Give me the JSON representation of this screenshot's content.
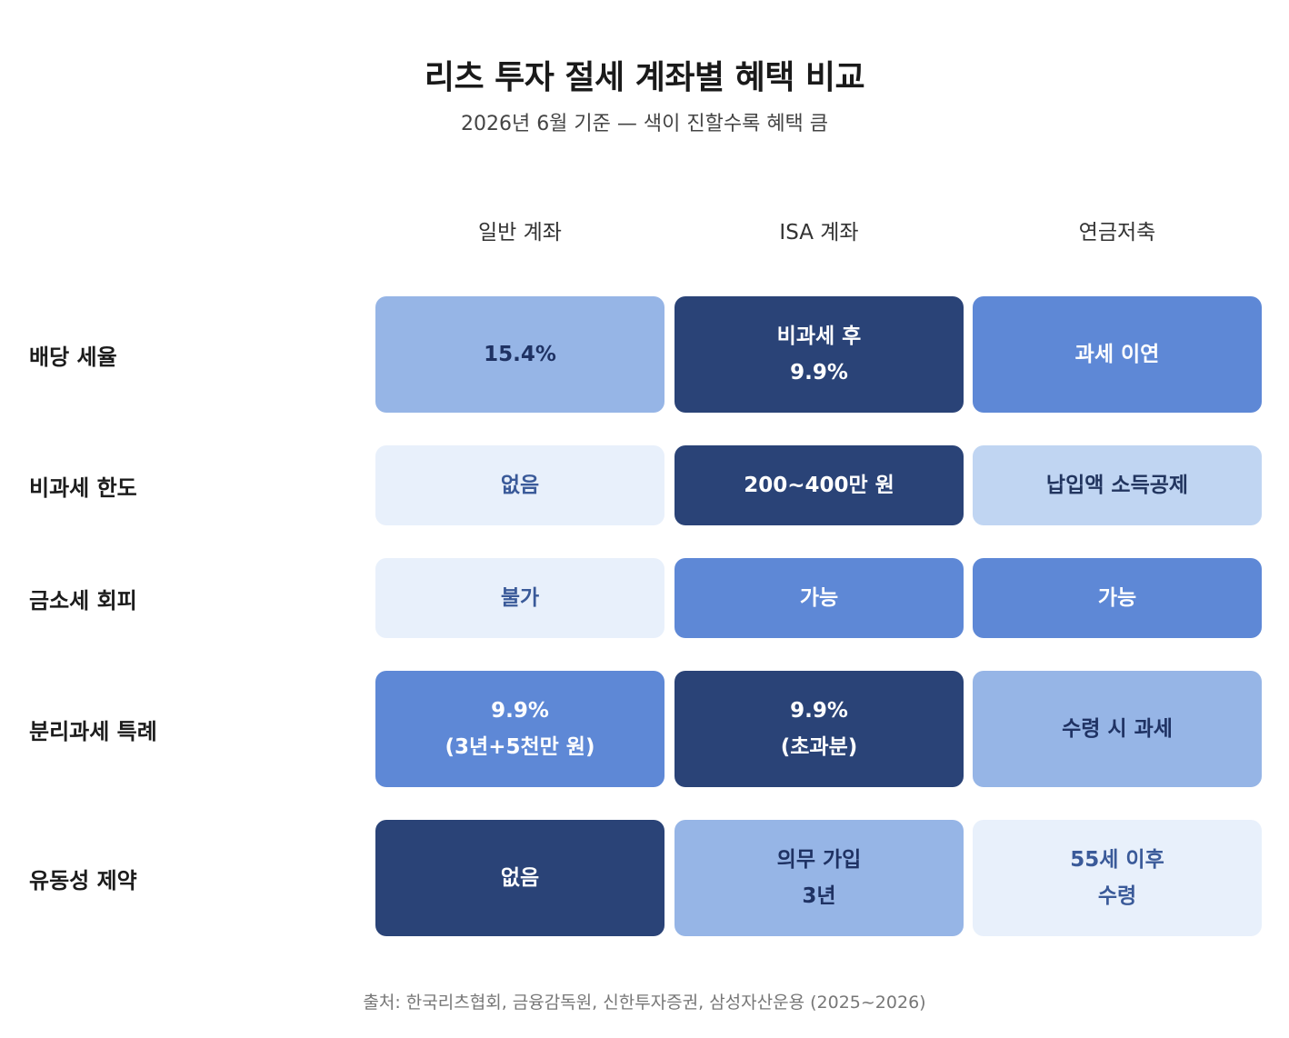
{
  "chart_data": {
    "type": "table",
    "title": "리츠 투자 절세 계좌별 혜택 비교",
    "subtitle": "2026년 6월 기준 — 색이 진할수록 혜택 큼",
    "columns": [
      "일반 계좌",
      "ISA 계좌",
      "연금저축"
    ],
    "rows": [
      {
        "label": "배당 세율",
        "cells": [
          {
            "text": "15.4%",
            "level": 2
          },
          {
            "text": "비과세 후\n9.9%",
            "level": 4
          },
          {
            "text": "과세 이연",
            "level": 3
          }
        ]
      },
      {
        "label": "비과세 한도",
        "cells": [
          {
            "text": "없음",
            "level": 0
          },
          {
            "text": "200~400만 원",
            "level": 4
          },
          {
            "text": "납입액 소득공제",
            "level": 1
          }
        ]
      },
      {
        "label": "금소세 회피",
        "cells": [
          {
            "text": "불가",
            "level": 0
          },
          {
            "text": "가능",
            "level": 3
          },
          {
            "text": "가능",
            "level": 3
          }
        ]
      },
      {
        "label": "분리과세 특례",
        "cells": [
          {
            "text": "9.9%\n(3년+5천만 원)",
            "level": 3
          },
          {
            "text": "9.9%\n(초과분)",
            "level": 4
          },
          {
            "text": "수령 시 과세",
            "level": 2
          }
        ]
      },
      {
        "label": "유동성 제약",
        "cells": [
          {
            "text": "없음",
            "level": 4
          },
          {
            "text": "의무 가입\n3년",
            "level": 2
          },
          {
            "text": "55세 이후\n수령",
            "level": 0
          }
        ]
      }
    ],
    "color_scale": [
      "#e8f0fb",
      "#c0d5f2",
      "#96b5e6",
      "#5e88d6",
      "#2a4377"
    ],
    "source": "출처: 한국리츠협회, 금융감독원, 신한투자증권, 삼성자산운용 (2025~2026)"
  }
}
